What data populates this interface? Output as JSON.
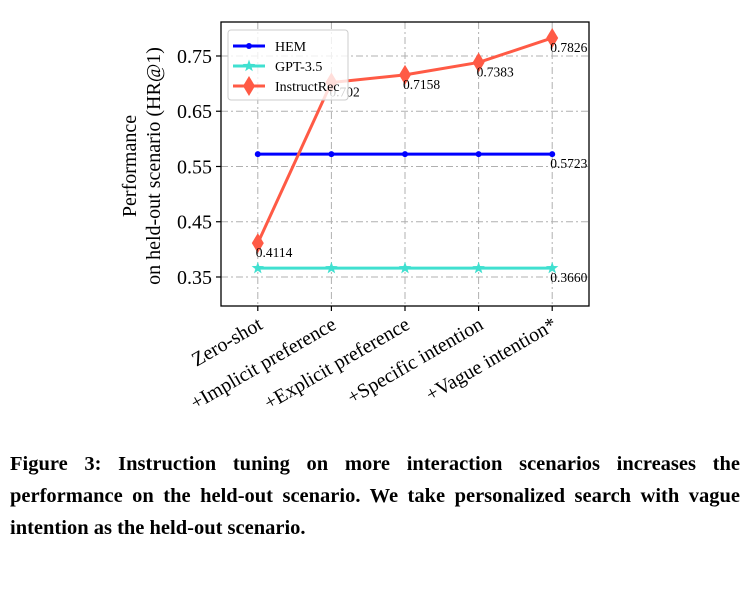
{
  "chart_data": {
    "type": "line",
    "title": "",
    "xlabel": "",
    "ylabel": [
      "Performance",
      "on held-out scenario (HR@1)"
    ],
    "categories": [
      "Zero-shot",
      "+Implicit preference",
      "+Explicit preference",
      "+Specific intention",
      "+Vague intention*"
    ],
    "ylim": [
      0.2975,
      0.8115
    ],
    "yticks": [
      0.35,
      0.45,
      0.55,
      0.65,
      0.75
    ],
    "ytick_labels": [
      "0.35",
      "0.45",
      "0.55",
      "0.65",
      "0.75"
    ],
    "grid": true,
    "legend_position": "top-left",
    "series": [
      {
        "name": "HEM",
        "color": "#0000ff",
        "marker": "circle",
        "values": [
          0.5723,
          0.5723,
          0.5723,
          0.5723,
          0.5723
        ],
        "labels": [
          "",
          "",
          "",
          "",
          "0.5723"
        ]
      },
      {
        "name": "GPT-3.5",
        "color": "#40e0d0",
        "marker": "star",
        "values": [
          0.366,
          0.366,
          0.366,
          0.366,
          0.366
        ],
        "labels": [
          "",
          "",
          "",
          "",
          "0.3660"
        ]
      },
      {
        "name": "InstructRec",
        "color": "#ff5a45",
        "marker": "diamond",
        "values": [
          0.4114,
          0.702,
          0.7158,
          0.7383,
          0.7826
        ],
        "labels": [
          "0.4114",
          "0.702",
          "0.7158",
          "0.7383",
          "0.7826"
        ]
      }
    ]
  },
  "caption": "Figure 3: Instruction tuning on more interaction scenarios increases the performance on the held-out scenario. We take personalized search with vague intention as the held-out scenario."
}
